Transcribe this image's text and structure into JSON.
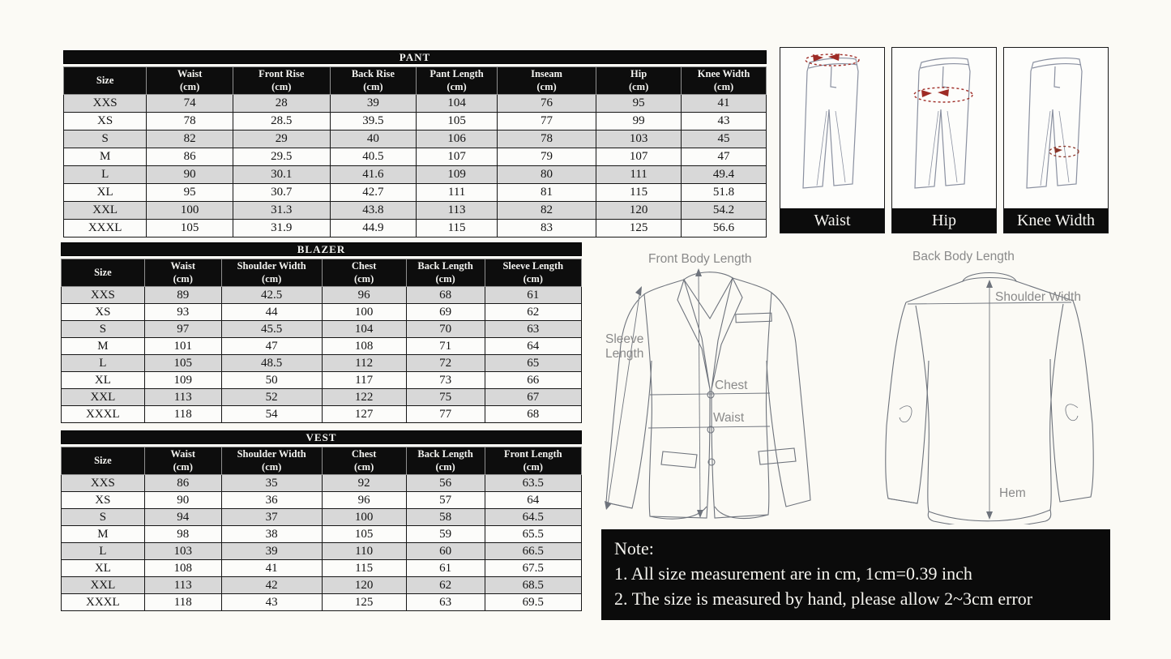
{
  "background": "#fbfaf5",
  "colors": {
    "header_bg": "#0d0d0d",
    "row_alt_gray": "#d8d8d8",
    "measure_arrow_red": "#9e2b25",
    "diagram_label_gray": "#8a8a8a",
    "line_art_gray": "#6e737c"
  },
  "tables": [
    {
      "title": "PANT",
      "columns": [
        {
          "name": "Size",
          "unit": ""
        },
        {
          "name": "Waist",
          "unit": "(cm)"
        },
        {
          "name": "Front Rise",
          "unit": "(cm)"
        },
        {
          "name": "Back Rise",
          "unit": "(cm)"
        },
        {
          "name": "Pant Length",
          "unit": "(cm)"
        },
        {
          "name": "Inseam",
          "unit": "(cm)"
        },
        {
          "name": "Hip",
          "unit": "(cm)"
        },
        {
          "name": "Knee Width",
          "unit": "(cm)"
        }
      ],
      "rows": [
        [
          "XXS",
          "74",
          "28",
          "39",
          "104",
          "76",
          "95",
          "41"
        ],
        [
          "XS",
          "78",
          "28.5",
          "39.5",
          "105",
          "77",
          "99",
          "43"
        ],
        [
          "S",
          "82",
          "29",
          "40",
          "106",
          "78",
          "103",
          "45"
        ],
        [
          "M",
          "86",
          "29.5",
          "40.5",
          "107",
          "79",
          "107",
          "47"
        ],
        [
          "L",
          "90",
          "30.1",
          "41.6",
          "109",
          "80",
          "111",
          "49.4"
        ],
        [
          "XL",
          "95",
          "30.7",
          "42.7",
          "111",
          "81",
          "115",
          "51.8"
        ],
        [
          "XXL",
          "100",
          "31.3",
          "43.8",
          "113",
          "82",
          "120",
          "54.2"
        ],
        [
          "XXXL",
          "105",
          "31.9",
          "44.9",
          "115",
          "83",
          "125",
          "56.6"
        ]
      ]
    },
    {
      "title": "BLAZER",
      "columns": [
        {
          "name": "Size",
          "unit": ""
        },
        {
          "name": "Waist",
          "unit": "(cm)"
        },
        {
          "name": "Shoulder Width",
          "unit": "(cm)"
        },
        {
          "name": "Chest",
          "unit": "(cm)"
        },
        {
          "name": "Back Length",
          "unit": "(cm)"
        },
        {
          "name": "Sleeve Length",
          "unit": "(cm)"
        }
      ],
      "rows": [
        [
          "XXS",
          "89",
          "42.5",
          "96",
          "68",
          "61"
        ],
        [
          "XS",
          "93",
          "44",
          "100",
          "69",
          "62"
        ],
        [
          "S",
          "97",
          "45.5",
          "104",
          "70",
          "63"
        ],
        [
          "M",
          "101",
          "47",
          "108",
          "71",
          "64"
        ],
        [
          "L",
          "105",
          "48.5",
          "112",
          "72",
          "65"
        ],
        [
          "XL",
          "109",
          "50",
          "117",
          "73",
          "66"
        ],
        [
          "XXL",
          "113",
          "52",
          "122",
          "75",
          "67"
        ],
        [
          "XXXL",
          "118",
          "54",
          "127",
          "77",
          "68"
        ]
      ]
    },
    {
      "title": "VEST",
      "columns": [
        {
          "name": "Size",
          "unit": ""
        },
        {
          "name": "Waist",
          "unit": "(cm)"
        },
        {
          "name": "Shoulder Width",
          "unit": "(cm)"
        },
        {
          "name": "Chest",
          "unit": "(cm)"
        },
        {
          "name": "Back Length",
          "unit": "(cm)"
        },
        {
          "name": "Front Length",
          "unit": "(cm)"
        }
      ],
      "rows": [
        [
          "XXS",
          "86",
          "35",
          "92",
          "56",
          "63.5"
        ],
        [
          "XS",
          "90",
          "36",
          "96",
          "57",
          "64"
        ],
        [
          "S",
          "94",
          "37",
          "100",
          "58",
          "64.5"
        ],
        [
          "M",
          "98",
          "38",
          "105",
          "59",
          "65.5"
        ],
        [
          "L",
          "103",
          "39",
          "110",
          "60",
          "66.5"
        ],
        [
          "XL",
          "108",
          "41",
          "115",
          "61",
          "67.5"
        ],
        [
          "XXL",
          "113",
          "42",
          "120",
          "62",
          "68.5"
        ],
        [
          "XXXL",
          "118",
          "43",
          "125",
          "63",
          "69.5"
        ]
      ]
    }
  ],
  "pant_diagrams": [
    {
      "label": "Waist"
    },
    {
      "label": "Hip"
    },
    {
      "label": "Knee Width"
    }
  ],
  "blazer_diagram": {
    "front": {
      "top_label": "Front Body Length",
      "sleeve_label": "Sleeve Length",
      "chest_label": "Chest",
      "waist_label": "Waist"
    },
    "back": {
      "top_label": "Back Body Length",
      "shoulder_label": "Shoulder Width",
      "hem_label": "Hem"
    }
  },
  "note": {
    "heading": "Note:",
    "line1": "1. All size measurement are in cm, 1cm=0.39 inch",
    "line2": "2. The size is measured by hand, please allow 2~3cm error"
  }
}
